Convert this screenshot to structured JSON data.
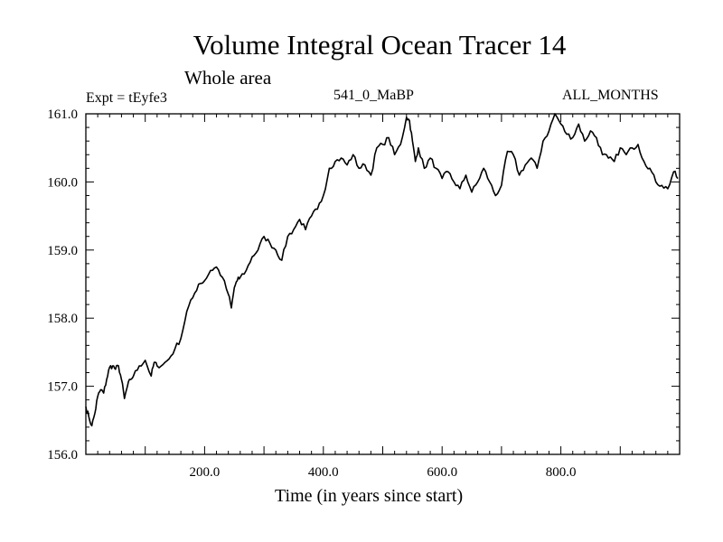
{
  "chart_data": {
    "type": "line",
    "title": "Volume Integral Ocean Tracer 14",
    "subtitle": "Whole area",
    "annotations": {
      "left": "Expt = tEyfe3",
      "center": "541_0_MaBP",
      "right": "ALL_MONTHS"
    },
    "xlabel": "Time (in years since start)",
    "ylabel": "",
    "xlim": [
      0,
      1000
    ],
    "ylim": [
      156.0,
      161.0
    ],
    "x_ticks": [
      200,
      400,
      600,
      800
    ],
    "x_tick_labels": [
      "200.0",
      "400.0",
      "600.0",
      "800.0"
    ],
    "y_ticks": [
      156,
      157,
      158,
      159,
      160,
      161
    ],
    "y_tick_labels": [
      "156.0",
      "157.0",
      "158.0",
      "159.0",
      "160.0",
      "161.0"
    ],
    "grid": false,
    "series": [
      {
        "name": "Volume Integral Ocean Tracer 14",
        "x": [
          0,
          5,
          10,
          15,
          20,
          25,
          30,
          35,
          40,
          45,
          50,
          55,
          60,
          65,
          70,
          75,
          80,
          90,
          100,
          110,
          115,
          120,
          130,
          140,
          150,
          160,
          170,
          180,
          190,
          200,
          210,
          220,
          230,
          240,
          245,
          250,
          255,
          260,
          270,
          280,
          290,
          300,
          310,
          320,
          330,
          340,
          350,
          360,
          370,
          380,
          390,
          400,
          410,
          420,
          430,
          440,
          450,
          460,
          470,
          480,
          490,
          500,
          510,
          520,
          530,
          540,
          545,
          550,
          555,
          560,
          570,
          580,
          590,
          600,
          610,
          620,
          630,
          640,
          650,
          660,
          670,
          680,
          690,
          700,
          710,
          720,
          730,
          740,
          750,
          760,
          770,
          780,
          790,
          800,
          810,
          820,
          830,
          840,
          850,
          860,
          870,
          880,
          890,
          900,
          910,
          920,
          930,
          940,
          950,
          960,
          970,
          980,
          990,
          997
        ],
        "values": [
          156.7,
          156.55,
          156.42,
          156.6,
          156.85,
          156.95,
          156.9,
          157.1,
          157.28,
          157.3,
          157.25,
          157.3,
          157.1,
          156.82,
          157.0,
          157.1,
          157.15,
          157.3,
          157.38,
          157.15,
          157.35,
          157.3,
          157.32,
          157.4,
          157.55,
          157.7,
          158.1,
          158.3,
          158.5,
          158.55,
          158.7,
          158.75,
          158.6,
          158.35,
          158.15,
          158.45,
          158.55,
          158.6,
          158.7,
          158.9,
          159.0,
          159.2,
          159.1,
          159.0,
          158.85,
          159.2,
          159.3,
          159.45,
          159.3,
          159.5,
          159.6,
          159.8,
          160.2,
          160.3,
          160.35,
          160.25,
          160.4,
          160.2,
          160.25,
          160.1,
          160.5,
          160.55,
          160.65,
          160.4,
          160.55,
          160.95,
          160.9,
          160.6,
          160.3,
          160.5,
          160.2,
          160.35,
          160.2,
          160.05,
          160.15,
          160.0,
          159.9,
          160.1,
          159.85,
          160.0,
          160.2,
          160.0,
          159.8,
          159.95,
          160.45,
          160.4,
          160.1,
          160.25,
          160.35,
          160.2,
          160.6,
          160.75,
          161.0,
          160.85,
          160.7,
          160.65,
          160.85,
          160.6,
          160.75,
          160.65,
          160.4,
          160.35,
          160.3,
          160.5,
          160.4,
          160.5,
          160.55,
          160.3,
          160.2,
          160.0,
          159.95,
          159.9,
          160.15,
          160.05
        ]
      }
    ]
  }
}
